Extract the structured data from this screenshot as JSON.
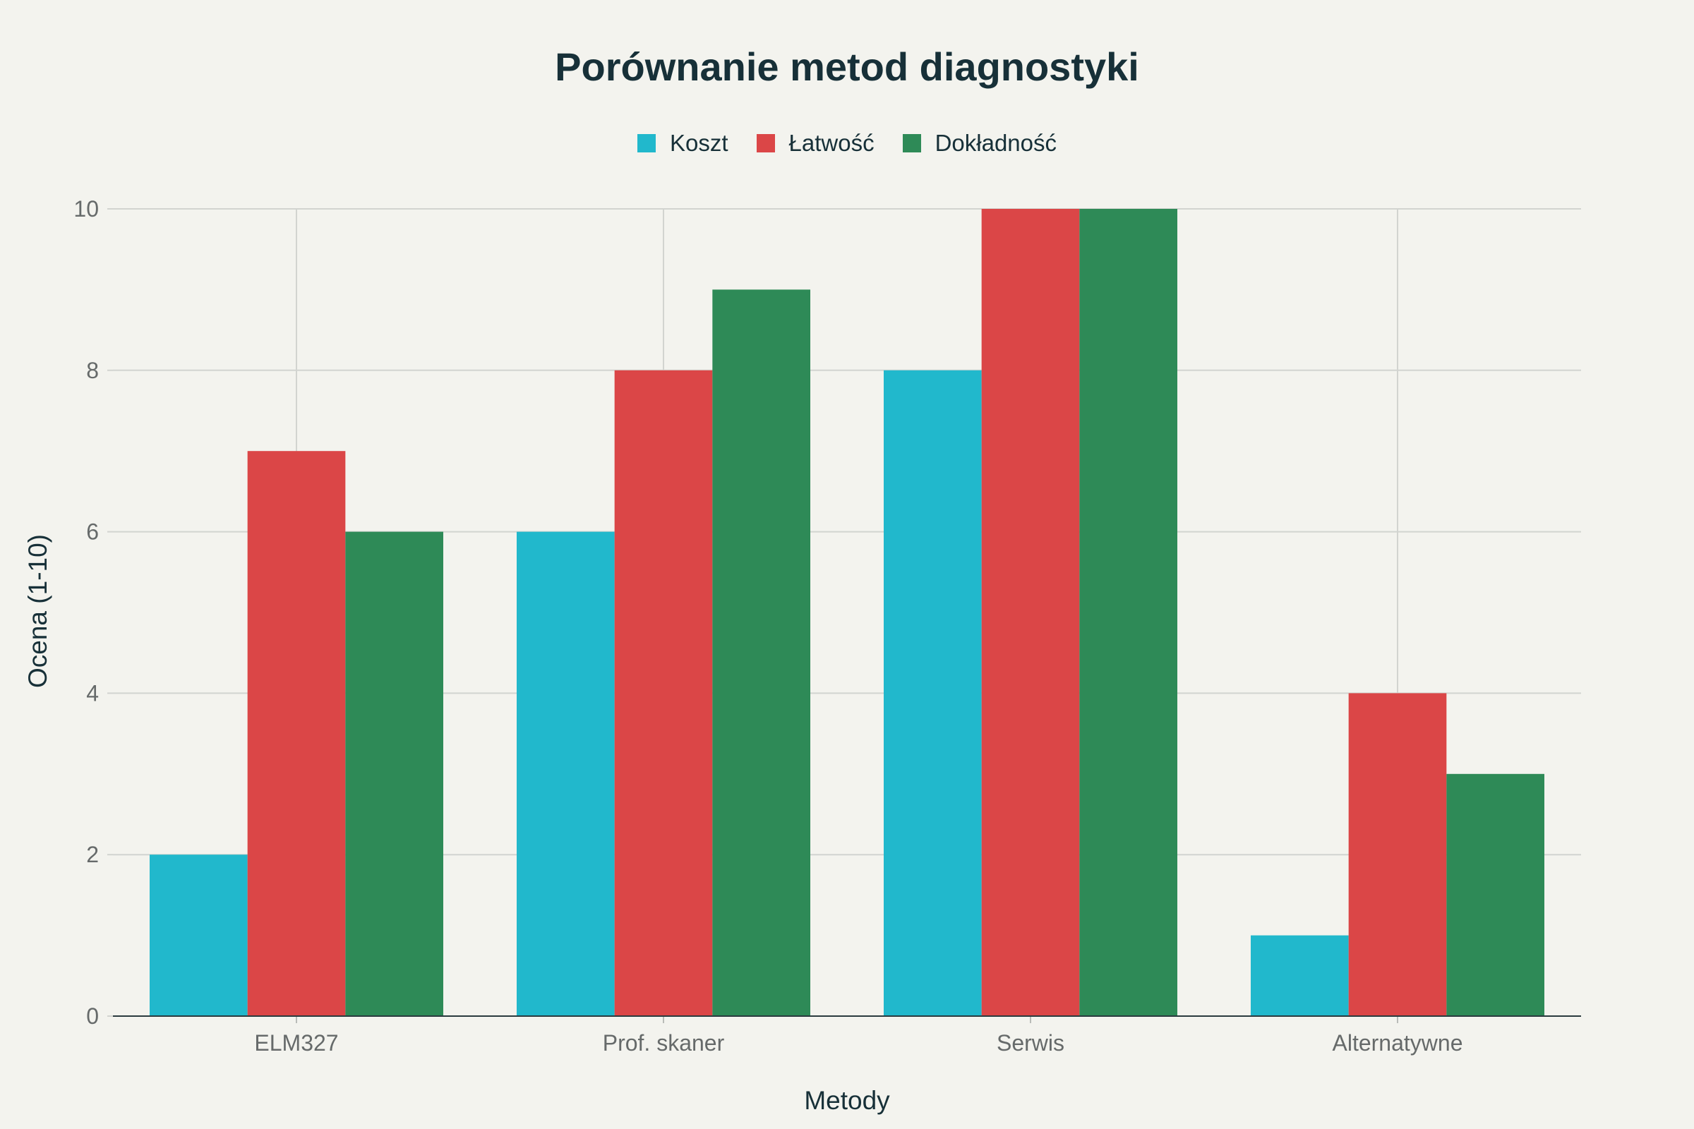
{
  "chart_data": {
    "type": "bar",
    "title": "Porównanie metod diagnostyki",
    "xlabel": "Metody",
    "ylabel": "Ocena (1-10)",
    "categories": [
      "ELM327",
      "Prof. skaner",
      "Serwis",
      "Alternatywne"
    ],
    "series": [
      {
        "name": "Koszt",
        "color": "#21b8cc",
        "values": [
          2,
          6,
          8,
          1
        ]
      },
      {
        "name": "Łatwość",
        "color": "#db4647",
        "values": [
          7,
          8,
          10,
          4
        ]
      },
      {
        "name": "Dokładność",
        "color": "#2e8a57",
        "values": [
          6,
          9,
          10,
          3
        ]
      }
    ],
    "ylim": [
      0,
      10
    ],
    "yticks": [
      0,
      2,
      4,
      6,
      8,
      10
    ],
    "grid": true,
    "legend_position": "top-center"
  }
}
